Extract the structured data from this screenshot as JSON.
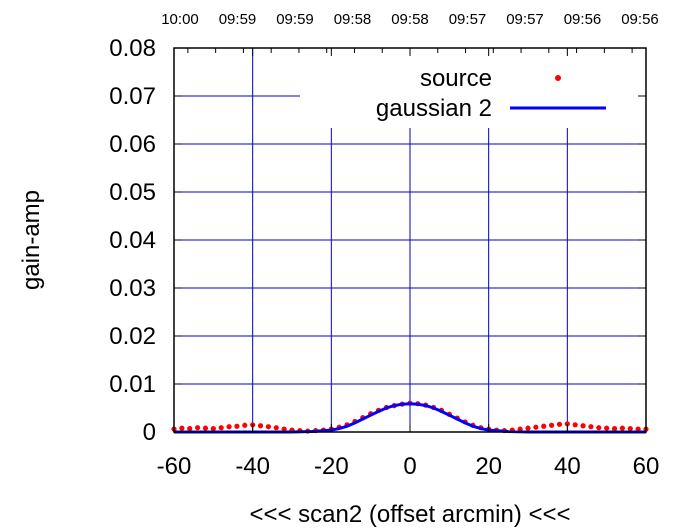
{
  "chart_data": {
    "type": "scatter",
    "title": "",
    "xlabel": "<<< scan2 (offset arcmin) <<<",
    "ylabel": "gain-amp",
    "xlim": [
      -60,
      60
    ],
    "ylim": [
      0,
      0.08
    ],
    "x_ticks": [
      "-60",
      "-40",
      "-20",
      "0",
      "20",
      "40",
      "60"
    ],
    "x_tick_values": [
      -60,
      -40,
      -20,
      0,
      20,
      40,
      60
    ],
    "y_ticks": [
      "0",
      "0.01",
      "0.02",
      "0.03",
      "0.04",
      "0.05",
      "0.06",
      "0.07",
      "0.08"
    ],
    "y_tick_values": [
      0,
      0.01,
      0.02,
      0.03,
      0.04,
      0.05,
      0.06,
      0.07,
      0.08
    ],
    "top_ticks": [
      "10:00",
      "09:59",
      "09:59",
      "09:58",
      "09:58",
      "09:57",
      "09:57",
      "09:56",
      "09:56"
    ],
    "grid": true,
    "grid_x_values": [
      -40,
      -20,
      0,
      20,
      40
    ],
    "legend_placement": "top-right",
    "series": [
      {
        "name": "source",
        "style": "points",
        "color": "#ff0000",
        "x": [
          -60,
          -58,
          -56,
          -54,
          -52,
          -50,
          -48,
          -46,
          -44,
          -42,
          -40,
          -38,
          -36,
          -34,
          -32,
          -30,
          -28,
          -26,
          -24,
          -22,
          -20,
          -18,
          -16,
          -14,
          -12,
          -10,
          -8,
          -6,
          -4,
          -2,
          0,
          2,
          4,
          6,
          8,
          10,
          12,
          14,
          16,
          18,
          20,
          22,
          24,
          26,
          28,
          30,
          32,
          34,
          36,
          38,
          40,
          42,
          44,
          46,
          48,
          50,
          52,
          54,
          56,
          58,
          60
        ],
        "y": [
          0.0006,
          0.0008,
          0.0007,
          0.0009,
          0.0008,
          0.0007,
          0.0009,
          0.0011,
          0.0012,
          0.0014,
          0.0015,
          0.0013,
          0.0011,
          0.0009,
          0.0006,
          0.0004,
          0.0003,
          0.0002,
          0.0003,
          0.0004,
          0.0006,
          0.001,
          0.0015,
          0.0022,
          0.003,
          0.0038,
          0.0045,
          0.0051,
          0.0055,
          0.0058,
          0.006,
          0.0059,
          0.0056,
          0.0051,
          0.0045,
          0.0037,
          0.0029,
          0.0021,
          0.0014,
          0.0009,
          0.0006,
          0.0004,
          0.0003,
          0.0004,
          0.0006,
          0.0008,
          0.001,
          0.0012,
          0.0014,
          0.0016,
          0.0017,
          0.0015,
          0.0013,
          0.0011,
          0.0009,
          0.0008,
          0.0007,
          0.0008,
          0.0007,
          0.0006,
          0.0006
        ]
      },
      {
        "name": "gaussian 2",
        "style": "line",
        "color": "#0000ff",
        "x": [
          -60,
          -55,
          -50,
          -45,
          -40,
          -35,
          -30,
          -25,
          -20,
          -18,
          -16,
          -14,
          -12,
          -10,
          -8,
          -6,
          -4,
          -2,
          0,
          2,
          4,
          6,
          8,
          10,
          12,
          14,
          16,
          18,
          20,
          25,
          30,
          35,
          40,
          45,
          50,
          55,
          60
        ],
        "y": [
          0.0,
          0.0,
          0.0,
          0.0,
          0.0,
          0.0,
          0.0,
          0.0001,
          0.0004,
          0.0007,
          0.0012,
          0.0019,
          0.0027,
          0.0035,
          0.0043,
          0.005,
          0.0055,
          0.0058,
          0.0059,
          0.0058,
          0.0055,
          0.005,
          0.0043,
          0.0035,
          0.0027,
          0.0019,
          0.0012,
          0.0007,
          0.0004,
          0.0001,
          0.0,
          0.0,
          0.0,
          0.0,
          0.0,
          0.0,
          0.0
        ]
      }
    ]
  }
}
